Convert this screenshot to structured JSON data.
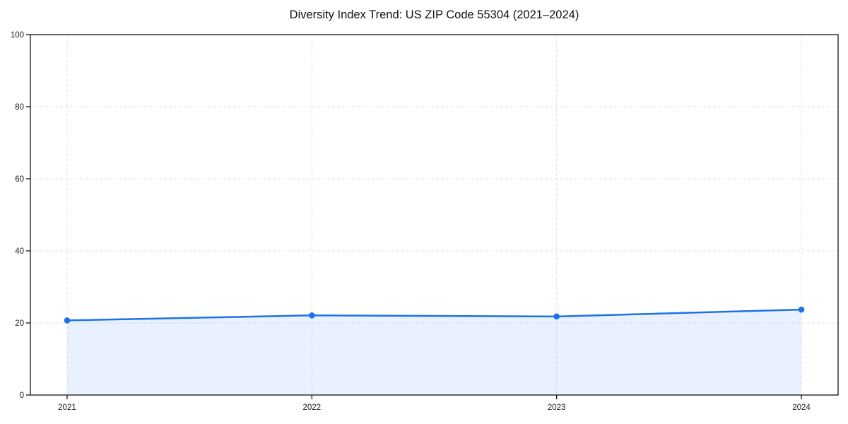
{
  "chart_data": {
    "type": "line",
    "title": "Diversity Index Trend: US ZIP Code 55304 (2021–2024)",
    "x": [
      2021,
      2022,
      2023,
      2024
    ],
    "xticks": [
      2021,
      2022,
      2023,
      2024
    ],
    "series": [
      {
        "name": "Diversity Index",
        "values": [
          20.7,
          22.1,
          21.8,
          23.7
        ]
      }
    ],
    "xlabel": "",
    "ylabel": "",
    "ylim": [
      0,
      100
    ],
    "yticks": [
      0,
      20,
      40,
      60,
      80,
      100
    ],
    "grid": "dashed horizontal and vertical gridlines",
    "legend": "none",
    "area_fill": true,
    "marker": "circle",
    "colors": {
      "line": "#1a73e8",
      "fill": "#1a73e8",
      "fill_opacity": 0.1,
      "grid": "#e2e2e2",
      "axis": "#000000",
      "text": "#1a1a1a",
      "background": "#ffffff"
    }
  }
}
